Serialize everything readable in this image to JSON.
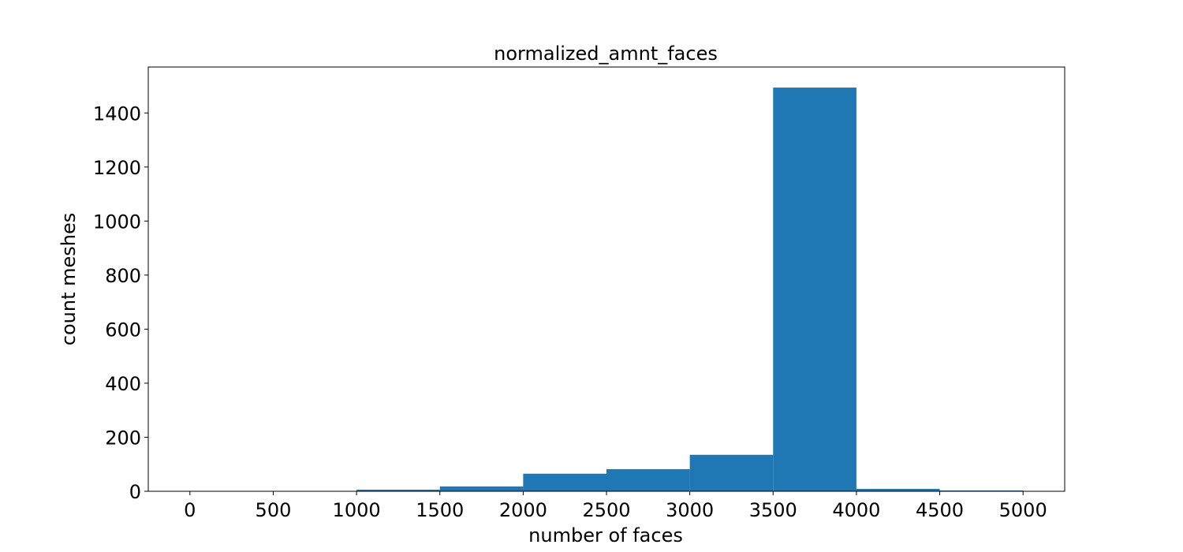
{
  "chart_data": {
    "type": "bar",
    "title": "normalized_amnt_faces",
    "xlabel": "number of faces",
    "ylabel": "count meshes",
    "xlim": [
      -250,
      5250
    ],
    "ylim": [
      0,
      1570
    ],
    "xticks": [
      0,
      500,
      1000,
      1500,
      2000,
      2500,
      3000,
      3500,
      4000,
      4500,
      5000
    ],
    "yticks": [
      0,
      200,
      400,
      600,
      800,
      1000,
      1200,
      1400
    ],
    "bins": [
      {
        "x0": 1000,
        "x1": 1500,
        "count": 6
      },
      {
        "x0": 1500,
        "x1": 2000,
        "count": 18
      },
      {
        "x0": 2000,
        "x1": 2500,
        "count": 65
      },
      {
        "x0": 2500,
        "x1": 3000,
        "count": 82
      },
      {
        "x0": 3000,
        "x1": 3500,
        "count": 135
      },
      {
        "x0": 3500,
        "x1": 4000,
        "count": 1494
      },
      {
        "x0": 4000,
        "x1": 4500,
        "count": 9
      },
      {
        "x0": 4500,
        "x1": 5000,
        "count": 3
      }
    ],
    "bar_color": "#1f77b4",
    "grid": false,
    "legend": false
  }
}
